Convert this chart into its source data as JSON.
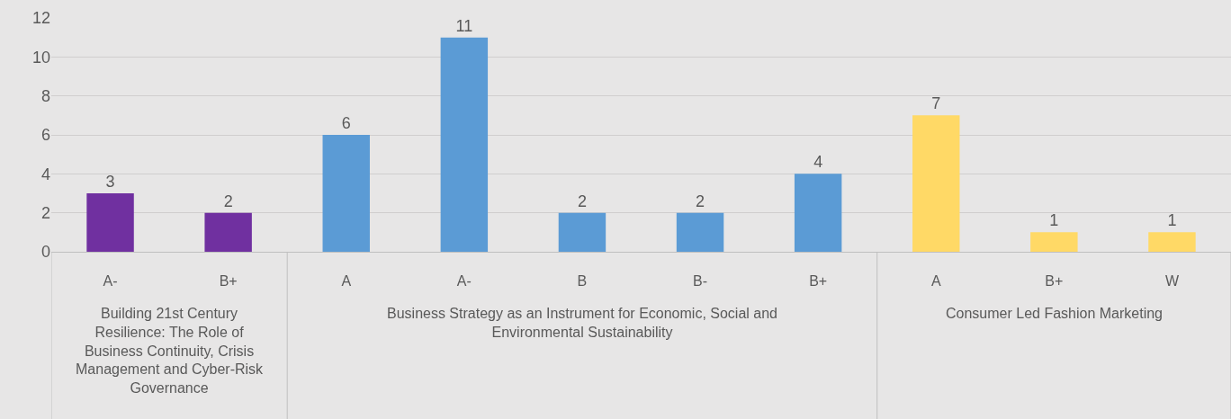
{
  "chart_data": {
    "type": "bar",
    "categories": [
      "A-",
      "B+",
      "A",
      "A-",
      "B",
      "B-",
      "B+",
      "A",
      "B+",
      "W"
    ],
    "series": [
      {
        "color": "#7030a0",
        "values": [
          3,
          2,
          null,
          null,
          null,
          null,
          null,
          null,
          null,
          null
        ]
      },
      {
        "color": "#5b9bd5",
        "values": [
          null,
          null,
          6,
          11,
          2,
          2,
          4,
          null,
          null,
          null
        ]
      },
      {
        "color": "#ffd966",
        "values": [
          null,
          null,
          null,
          null,
          null,
          null,
          null,
          7,
          1,
          1
        ]
      }
    ],
    "annotations": [
      "Building 21st Century Resilience: The Role of Business Continuity, Crisis Management and Cyber-Risk Governance",
      "Business Strategy as an Instrument for Economic, Social and Environmental Sustainability",
      "Consumer Led Fashion Marketing"
    ],
    "ylim": [
      0,
      12
    ],
    "yticks": [
      0,
      2,
      4,
      6,
      8,
      10,
      12
    ],
    "grid": "y",
    "data_labels": true
  }
}
